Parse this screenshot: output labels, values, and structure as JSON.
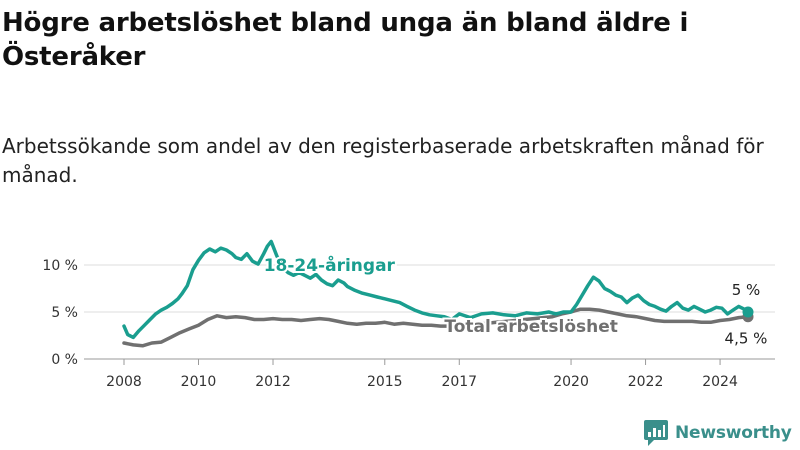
{
  "title": "Högre arbetslöshet bland unga än bland äldre i Österåker",
  "subtitle": "Arbetssökande som andel av den registerbaserade arbetskraften månad för månad.",
  "brand": {
    "name": "Newsworthy",
    "icon": "bar-chart-logo-icon",
    "color": "#3a8f8b"
  },
  "chart_data": {
    "type": "line",
    "title": "Högre arbetslöshet bland unga än bland äldre i Österåker",
    "subtitle": "Arbetssökande som andel av den registerbaserade arbetskraften månad för månad.",
    "xlabel": "",
    "ylabel": "",
    "xlim": [
      2008.0,
      2024.75
    ],
    "ylim": [
      0,
      12
    ],
    "y_ticks": [
      0,
      5,
      10
    ],
    "y_tick_labels": [
      "0 %",
      "5 %",
      "10 %"
    ],
    "x_ticks": [
      2008,
      2010,
      2012,
      2015,
      2017,
      2020,
      2022,
      2024
    ],
    "grid": true,
    "legend": "inline labels",
    "series": [
      {
        "name": "18-24-åringar",
        "color": "#1a9e8f",
        "end_label": "5 %",
        "x": [
          2008.0,
          2008.1,
          2008.25,
          2008.4,
          2008.55,
          2008.7,
          2008.85,
          2009.0,
          2009.15,
          2009.3,
          2009.45,
          2009.55,
          2009.7,
          2009.85,
          2010.0,
          2010.15,
          2010.3,
          2010.45,
          2010.6,
          2010.75,
          2010.9,
          2011.0,
          2011.15,
          2011.3,
          2011.45,
          2011.6,
          2011.75,
          2011.85,
          2011.95,
          2012.1,
          2012.25,
          2012.4,
          2012.55,
          2012.7,
          2012.85,
          2013.0,
          2013.15,
          2013.3,
          2013.45,
          2013.6,
          2013.75,
          2013.9,
          2014.0,
          2014.2,
          2014.4,
          2014.6,
          2014.8,
          2015.0,
          2015.2,
          2015.4,
          2015.6,
          2015.8,
          2016.0,
          2016.2,
          2016.4,
          2016.6,
          2016.8,
          2017.0,
          2017.3,
          2017.6,
          2017.9,
          2018.2,
          2018.5,
          2018.8,
          2019.1,
          2019.4,
          2019.6,
          2019.8,
          2020.0,
          2020.15,
          2020.3,
          2020.45,
          2020.6,
          2020.75,
          2020.9,
          2021.05,
          2021.2,
          2021.35,
          2021.5,
          2021.65,
          2021.8,
          2021.95,
          2022.1,
          2022.25,
          2022.4,
          2022.55,
          2022.7,
          2022.85,
          2023.0,
          2023.15,
          2023.3,
          2023.45,
          2023.6,
          2023.75,
          2023.9,
          2024.05,
          2024.2,
          2024.35,
          2024.5,
          2024.65,
          2024.75
        ],
        "y": [
          3.5,
          2.6,
          2.3,
          3.0,
          3.6,
          4.2,
          4.8,
          5.2,
          5.5,
          5.9,
          6.4,
          6.9,
          7.8,
          9.5,
          10.5,
          11.3,
          11.7,
          11.4,
          11.8,
          11.6,
          11.2,
          10.8,
          10.6,
          11.2,
          10.4,
          10.1,
          11.2,
          12.0,
          12.5,
          11.0,
          9.8,
          9.2,
          8.9,
          9.2,
          8.9,
          8.6,
          9.0,
          8.4,
          8.0,
          7.8,
          8.4,
          8.1,
          7.7,
          7.3,
          7.0,
          6.8,
          6.6,
          6.4,
          6.2,
          6.0,
          5.6,
          5.2,
          4.9,
          4.7,
          4.6,
          4.5,
          4.2,
          4.8,
          4.4,
          4.8,
          4.9,
          4.7,
          4.6,
          4.9,
          4.8,
          5.0,
          4.8,
          5.0,
          5.0,
          5.8,
          6.8,
          7.8,
          8.7,
          8.3,
          7.5,
          7.2,
          6.8,
          6.6,
          6.0,
          6.5,
          6.8,
          6.2,
          5.8,
          5.6,
          5.3,
          5.1,
          5.6,
          6.0,
          5.4,
          5.2,
          5.6,
          5.3,
          5.0,
          5.2,
          5.5,
          5.4,
          4.8,
          5.2,
          5.6,
          5.3,
          5.0
        ]
      },
      {
        "name": "Total arbetslöshet",
        "color": "#707070",
        "end_label": "4,5 %",
        "x": [
          2008.0,
          2008.25,
          2008.5,
          2008.75,
          2009.0,
          2009.25,
          2009.5,
          2009.75,
          2010.0,
          2010.25,
          2010.5,
          2010.75,
          2011.0,
          2011.25,
          2011.5,
          2011.75,
          2012.0,
          2012.25,
          2012.5,
          2012.75,
          2013.0,
          2013.25,
          2013.5,
          2013.75,
          2014.0,
          2014.25,
          2014.5,
          2014.75,
          2015.0,
          2015.25,
          2015.5,
          2015.75,
          2016.0,
          2016.25,
          2016.5,
          2016.75,
          2017.0,
          2017.25,
          2017.5,
          2017.75,
          2018.0,
          2018.25,
          2018.5,
          2018.75,
          2019.0,
          2019.25,
          2019.5,
          2019.75,
          2020.0,
          2020.25,
          2020.5,
          2020.75,
          2021.0,
          2021.25,
          2021.5,
          2021.75,
          2022.0,
          2022.25,
          2022.5,
          2022.75,
          2023.0,
          2023.25,
          2023.5,
          2023.75,
          2024.0,
          2024.25,
          2024.5,
          2024.75
        ],
        "y": [
          1.7,
          1.5,
          1.4,
          1.7,
          1.8,
          2.3,
          2.8,
          3.2,
          3.6,
          4.2,
          4.6,
          4.4,
          4.5,
          4.4,
          4.2,
          4.2,
          4.3,
          4.2,
          4.2,
          4.1,
          4.2,
          4.3,
          4.2,
          4.0,
          3.8,
          3.7,
          3.8,
          3.8,
          3.9,
          3.7,
          3.8,
          3.7,
          3.6,
          3.6,
          3.5,
          3.5,
          3.6,
          3.7,
          3.7,
          3.8,
          3.9,
          4.0,
          4.1,
          4.2,
          4.3,
          4.4,
          4.5,
          4.8,
          5.0,
          5.3,
          5.3,
          5.2,
          5.0,
          4.8,
          4.6,
          4.5,
          4.3,
          4.1,
          4.0,
          4.0,
          4.0,
          4.0,
          3.9,
          3.9,
          4.1,
          4.2,
          4.4,
          4.5
        ]
      }
    ]
  }
}
